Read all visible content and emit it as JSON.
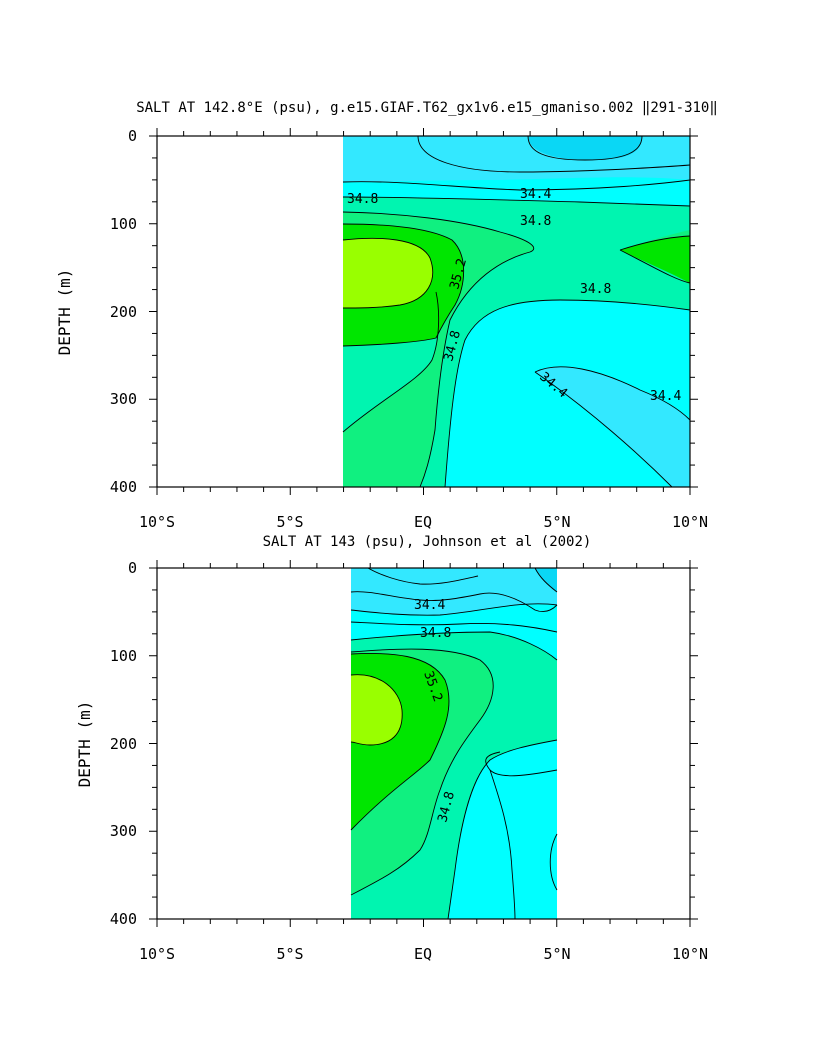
{
  "colors": {
    "salt_lt_34_2": "#0ad7f5",
    "salt_34_2_34_4": "#33e8ff",
    "salt_34_4_34_6": "#00ffff",
    "salt_34_6_34_8": "#00f0e8",
    "salt_34_8_35_0": "#00f5b0",
    "salt_35_0_35_2": "#10f080",
    "salt_35_2_35_4": "#00e600",
    "salt_gt_35_4": "#99ff00",
    "line": "#000000"
  },
  "chart_data": [
    {
      "type": "heatmap",
      "title": "SALT AT 142.8°E (psu), g.e15.GIAF.T62_gx1v6.e15_gmaniso.002 ‖291-310‖",
      "ylabel": "DEPTH (m)",
      "xlabel": "",
      "x_ticks": [
        "10°S",
        "5°S",
        "EQ",
        "5°N",
        "10°N"
      ],
      "y_ticks": [
        "0",
        "100",
        "200",
        "300",
        "400"
      ],
      "xlim": [
        -10,
        10
      ],
      "ylim": [
        400,
        0
      ],
      "data_extent_lat": [
        -3.1,
        10
      ],
      "contour_labels": [
        "34.4",
        "34.8",
        "34.8",
        "35.2",
        "34.8",
        "34.8",
        "34.4",
        "34.4"
      ]
    },
    {
      "type": "heatmap",
      "title": "SALT AT 143 (psu), Johnson et al (2002)",
      "ylabel": "DEPTH (m)",
      "xlabel": "",
      "x_ticks": [
        "10°S",
        "5°S",
        "EQ",
        "5°N",
        "10°N"
      ],
      "y_ticks": [
        "0",
        "100",
        "200",
        "300",
        "400"
      ],
      "xlim": [
        -10,
        10
      ],
      "ylim": [
        400,
        0
      ],
      "data_extent_lat": [
        -2.8,
        4.8
      ],
      "contour_labels": [
        "34.4",
        "34.8",
        "35.2",
        "34.8"
      ]
    }
  ]
}
